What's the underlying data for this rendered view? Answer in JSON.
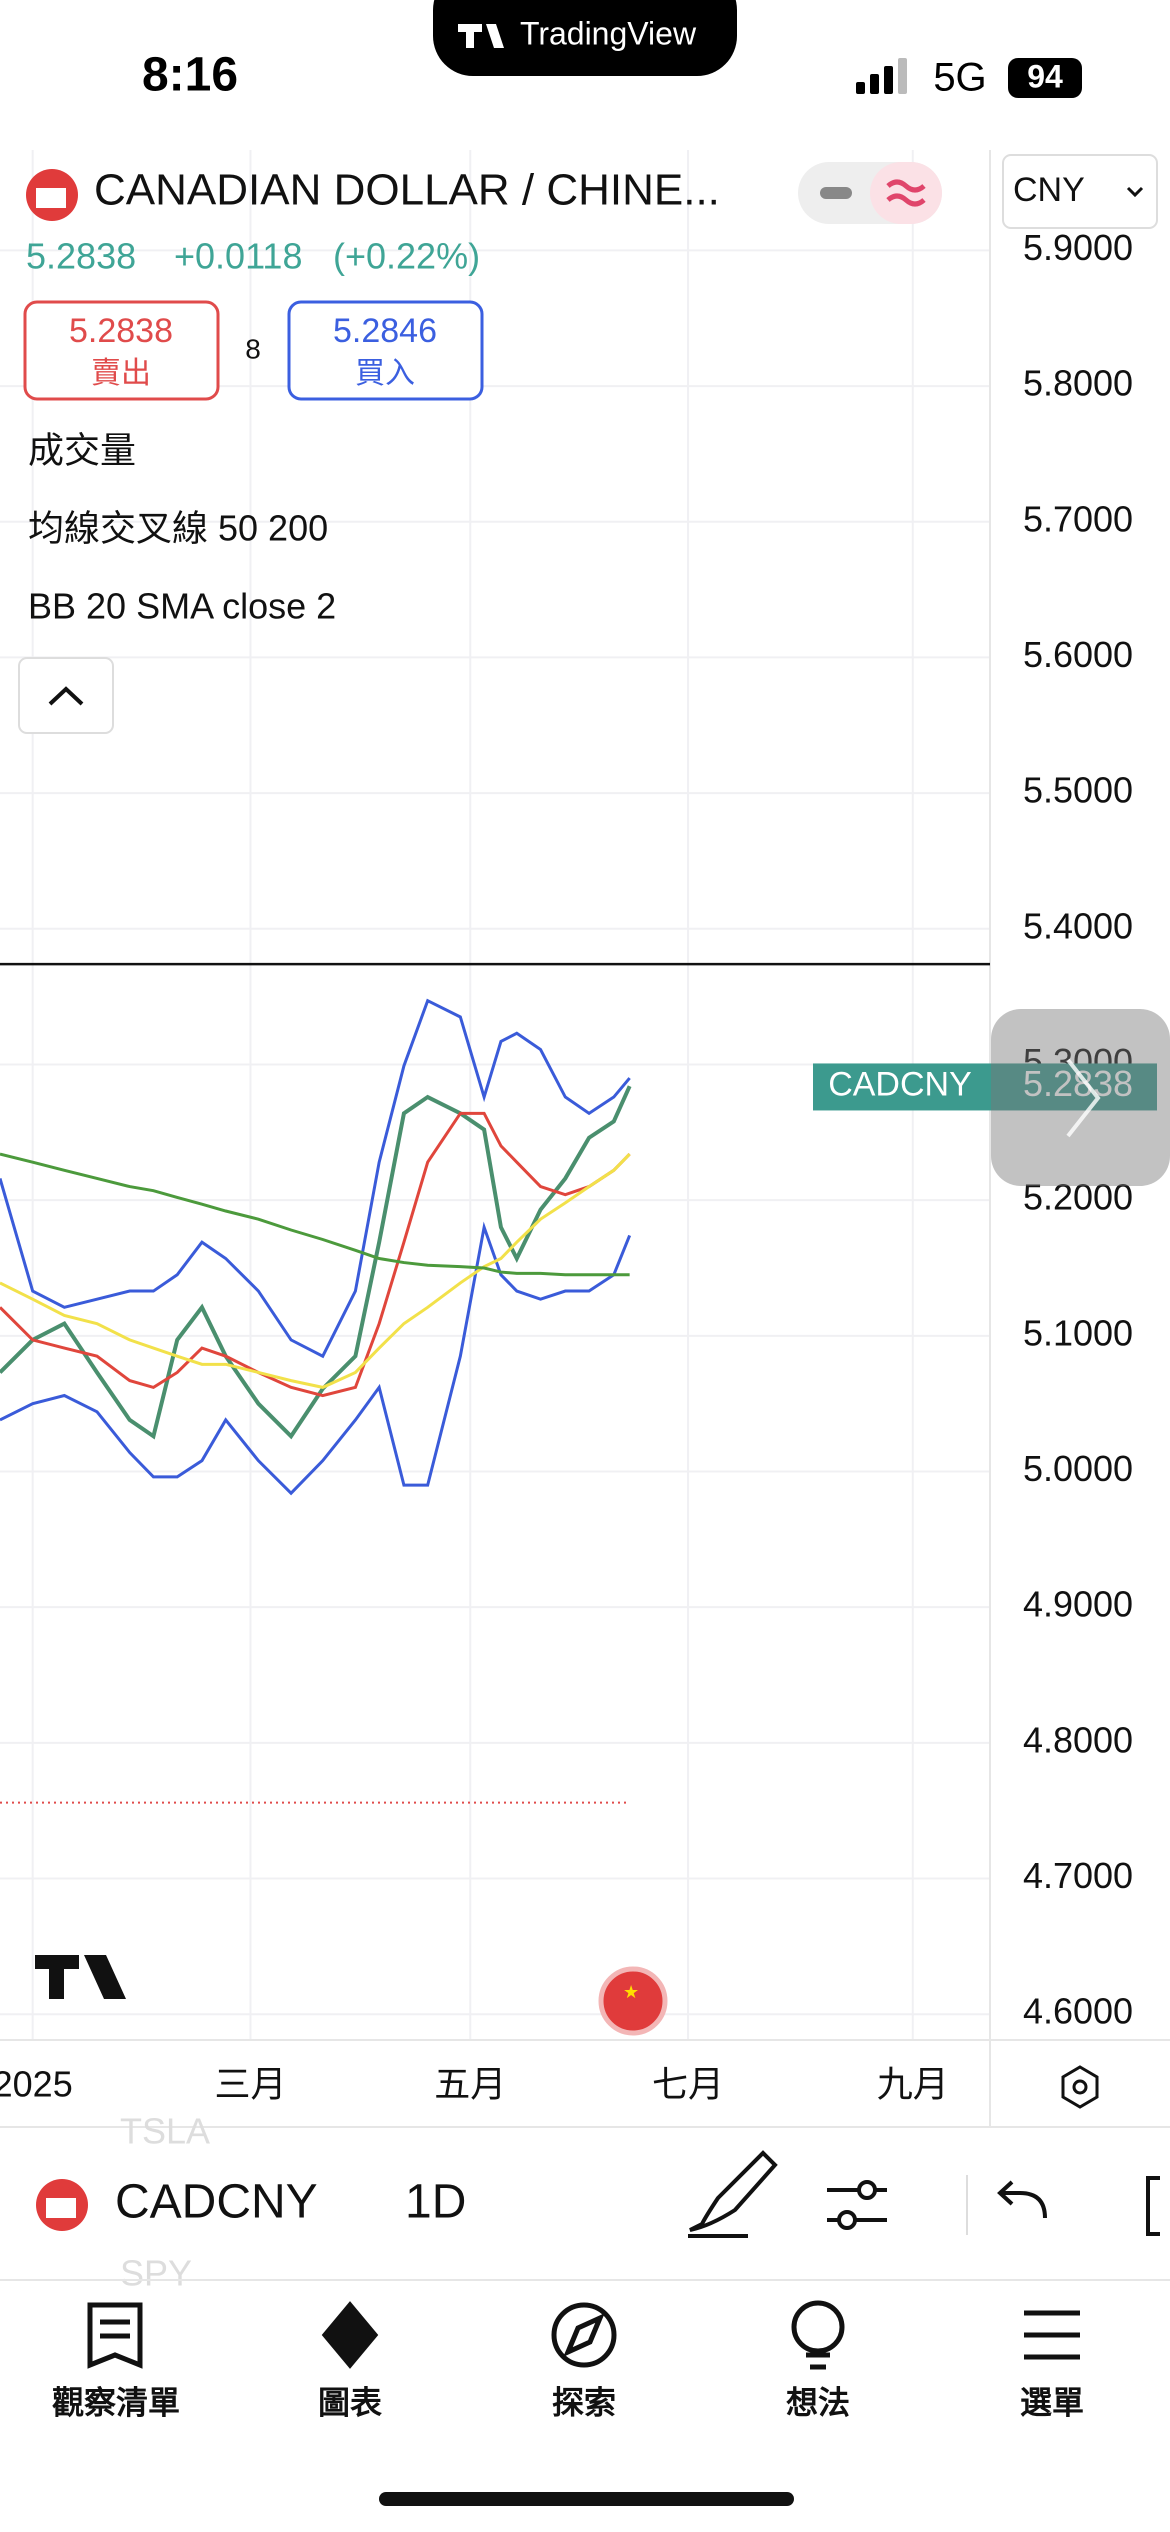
{
  "status": {
    "time": "8:16",
    "island": "TradingView",
    "network": "5G",
    "battery": "94"
  },
  "header": {
    "title": "CANADIAN DOLLAR / CHINE...",
    "price": "5.2838",
    "change": "+0.0118",
    "change_pct": "(+0.22%)",
    "currency": "CNY",
    "sell_price": "5.2838",
    "sell_label": "賣出",
    "spread": "8",
    "buy_price": "5.2846",
    "buy_label": "買入"
  },
  "indicators": [
    "成交量",
    "均線交叉線 50 200",
    "BB 20 SMA close 2"
  ],
  "chart_data": {
    "type": "line",
    "x": [
      0,
      3.3,
      6.5,
      9.8,
      13.1,
      15.5,
      17.9,
      20.4,
      22.8,
      26.1,
      29.4,
      32.6,
      35.9,
      38.3,
      40.8,
      43.2,
      46.5,
      48.9,
      50.6,
      52.2,
      54.6,
      57.1,
      59.5,
      62.0,
      63.6
    ],
    "series": [
      {
        "color": "#4a8f6e",
        "values": [
          5.073,
          5.097,
          5.109,
          5.073,
          5.038,
          5.026,
          5.097,
          5.121,
          5.085,
          5.05,
          5.026,
          5.061,
          5.085,
          5.169,
          5.264,
          5.276,
          5.264,
          5.252,
          5.18,
          5.157,
          5.193,
          5.216,
          5.246,
          5.258,
          5.284
        ]
      },
      {
        "color": "#3a5bd9",
        "values": [
          5.216,
          5.133,
          5.121,
          5.127,
          5.133,
          5.133,
          5.145,
          5.169,
          5.157,
          5.133,
          5.097,
          5.085,
          5.133,
          5.228,
          5.299,
          5.347,
          5.335,
          5.276,
          5.317,
          5.323,
          5.311,
          5.276,
          5.264,
          5.276,
          5.29
        ]
      },
      {
        "color": "#3a5bd9",
        "values": [
          5.038,
          5.05,
          5.056,
          5.044,
          5.014,
          4.996,
          4.996,
          5.008,
          5.038,
          5.008,
          4.984,
          5.008,
          5.038,
          5.062,
          4.99,
          4.99,
          5.085,
          5.18,
          5.145,
          5.133,
          5.127,
          5.133,
          5.133,
          5.145,
          5.174
        ]
      },
      {
        "color": "#e0463c",
        "values": [
          5.121,
          5.097,
          5.091,
          5.085,
          5.067,
          5.062,
          5.073,
          5.091,
          5.085,
          5.073,
          5.062,
          5.056,
          5.062,
          5.109,
          5.169,
          5.228,
          5.264,
          5.264,
          5.24,
          5.228,
          5.21,
          5.204,
          5.21,
          5.222,
          5.234
        ]
      },
      {
        "color": "#f2e14a",
        "values": [
          5.139,
          5.127,
          5.115,
          5.109,
          5.097,
          5.091,
          5.085,
          5.079,
          5.079,
          5.073,
          5.067,
          5.062,
          5.073,
          5.091,
          5.109,
          5.121,
          5.139,
          5.151,
          5.157,
          5.169,
          5.186,
          5.198,
          5.21,
          5.222,
          5.234
        ]
      },
      {
        "color": "#4c9a3c",
        "values": [
          5.234,
          5.228,
          5.222,
          5.216,
          5.21,
          5.207,
          5.202,
          5.197,
          5.192,
          5.186,
          5.178,
          5.171,
          5.163,
          5.157,
          5.154,
          5.152,
          5.151,
          5.15,
          5.147,
          5.146,
          5.146,
          5.145,
          5.145,
          5.145,
          5.145
        ]
      }
    ],
    "hline": 5.374,
    "dotted_line": 4.756,
    "last_symbol": "CADCNY",
    "last_price": {
      "value": 5.2838,
      "label": "5.2838"
    },
    "xlim": [
      0,
      100
    ],
    "xticks": [
      {
        "value": 3.3,
        "label": "2025"
      },
      {
        "value": 25.3,
        "label": "三月"
      },
      {
        "value": 47.5,
        "label": "五月"
      },
      {
        "value": 69.5,
        "label": "七月"
      },
      {
        "value": 92.2,
        "label": "九月"
      }
    ],
    "ylim": [
      4.581,
      5.974
    ],
    "yticks": [
      {
        "value": 4.6,
        "label": "4.6000"
      },
      {
        "value": 4.7,
        "label": "4.7000"
      },
      {
        "value": 4.8,
        "label": "4.8000"
      },
      {
        "value": 4.9,
        "label": "4.9000"
      },
      {
        "value": 5.0,
        "label": "5.0000"
      },
      {
        "value": 5.1,
        "label": "5.1000"
      },
      {
        "value": 5.2,
        "label": "5.2000"
      },
      {
        "value": 5.3,
        "label": "5.3000"
      },
      {
        "value": 5.4,
        "label": "5.4000"
      },
      {
        "value": 5.5,
        "label": "5.5000"
      },
      {
        "value": 5.6,
        "label": "5.6000"
      },
      {
        "value": 5.7,
        "label": "5.7000"
      },
      {
        "value": 5.8,
        "label": "5.8000"
      },
      {
        "value": 5.9,
        "label": "5.9000"
      }
    ],
    "grid": true
  },
  "toolbar": {
    "symbol": "CADCNY",
    "interval": "1D",
    "ghost_above": "TSLA",
    "ghost_below": "SPY"
  },
  "nav": [
    "觀察清單",
    "圖表",
    "探索",
    "想法",
    "選單"
  ]
}
